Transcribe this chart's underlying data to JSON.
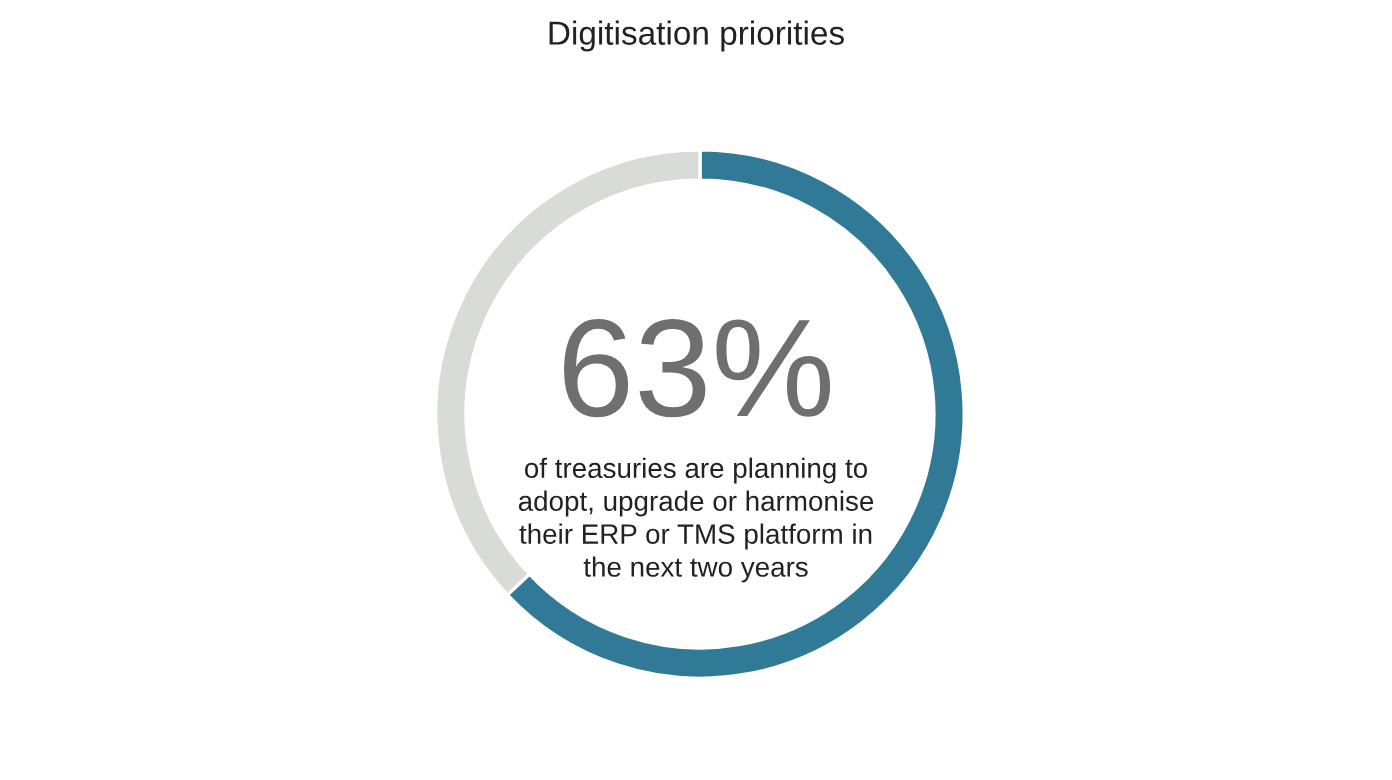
{
  "chart_data": {
    "type": "donut",
    "title": "Digitisation priorities",
    "categories": [
      null,
      null
    ],
    "values": [
      63,
      37
    ],
    "colors": [
      "#307a97",
      "#d9dbd8"
    ],
    "annotations": [
      "63%",
      "of treasuries are planning to\nadopt, upgrade or harmonise\ntheir ERP or TMS platform in\nthe next two years"
    ],
    "legend": false
  }
}
